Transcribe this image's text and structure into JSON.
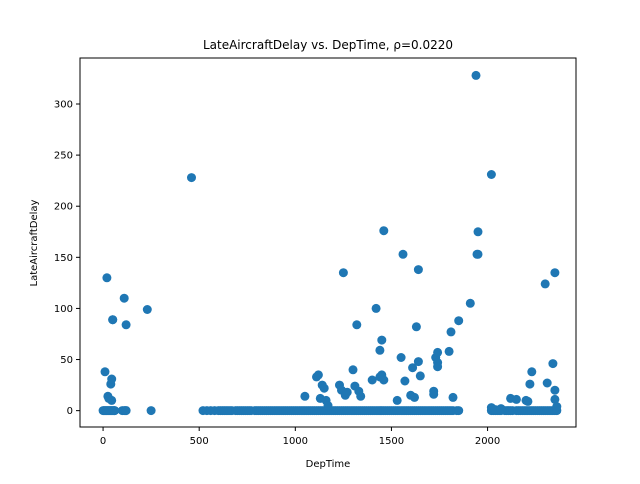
{
  "chart_data": {
    "type": "scatter",
    "title": "LateAircraftDelay vs. DepTime, ρ=0.0220",
    "xlabel": "DepTime",
    "ylabel": "LateAircraftDelay",
    "xlim": [
      -120,
      2460
    ],
    "ylim": [
      -16,
      345
    ],
    "xticks": [
      0,
      500,
      1000,
      1500,
      2000
    ],
    "yticks": [
      0,
      50,
      100,
      150,
      200,
      250,
      300
    ],
    "grid": false,
    "marker_color": "#1f77b4",
    "series": [
      {
        "x": [
          0,
          5,
          10,
          15,
          20,
          25,
          30,
          35,
          40,
          45,
          50,
          55,
          60,
          100,
          110,
          115,
          120,
          250,
          520,
          540,
          560,
          580,
          600,
          610,
          620,
          630,
          640,
          650,
          660,
          670,
          690,
          700,
          710,
          720,
          730,
          740,
          750,
          760,
          770,
          790,
          800,
          810,
          820,
          830,
          840,
          850,
          860,
          870,
          880,
          890,
          900,
          910,
          920,
          930,
          940,
          950,
          960,
          970,
          980,
          990,
          1000,
          1010,
          1020,
          1030,
          1040,
          1050,
          1060,
          1070,
          1080,
          1090,
          1100,
          1110,
          1120,
          1130,
          1140,
          1150,
          1160,
          1170,
          1180,
          1190,
          1200,
          1210,
          1220,
          1230,
          1240,
          1250,
          1260,
          1270,
          1280,
          1290,
          1300,
          1310,
          1320,
          1330,
          1340,
          1350,
          1360,
          1370,
          1380,
          1390,
          1400,
          1410,
          1420,
          1430,
          1440,
          1450,
          1460,
          1470,
          1480,
          1490,
          1500,
          1510,
          1520,
          1530,
          1540,
          1550,
          1560,
          1570,
          1580,
          1590,
          1600,
          1610,
          1620,
          1630,
          1640,
          1650,
          1660,
          1670,
          1680,
          1690,
          1700,
          1710,
          1720,
          1730,
          1740,
          1750,
          1760,
          1770,
          1780,
          1790,
          1800,
          1810,
          1820,
          1840,
          1850,
          2020,
          2030,
          2040,
          2050,
          2060,
          2070,
          2090,
          2100,
          2110,
          2120,
          2130,
          2150,
          2160,
          2170,
          2180,
          2190,
          2200,
          2210,
          2220,
          2230,
          2240,
          2250,
          2260,
          2270,
          2280,
          2290,
          2300,
          2310,
          2320,
          2330,
          2340,
          2350,
          2360,
          10,
          20,
          25,
          30,
          40,
          45,
          45,
          50,
          50,
          60,
          110,
          120,
          230,
          460,
          1050,
          1110,
          1120,
          1130,
          1140,
          1150,
          1160,
          1170,
          1230,
          1240,
          1250,
          1260,
          1270,
          1300,
          1310,
          1320,
          1330,
          1340,
          1400,
          1420,
          1440,
          1440,
          1450,
          1450,
          1460,
          1460,
          1530,
          1550,
          1560,
          1570,
          1600,
          1610,
          1620,
          1630,
          1640,
          1640,
          1650,
          1720,
          1720,
          1730,
          1740,
          1740,
          1740,
          1800,
          1810,
          1820,
          1850,
          1910,
          1940,
          1945,
          1950,
          2020,
          1950,
          2020,
          2040,
          2070,
          2120,
          2150,
          2200,
          2210,
          2220,
          2230,
          2300,
          2310,
          2340,
          2350,
          2350,
          2350,
          2360
        ],
        "y": [
          0,
          0,
          0,
          0,
          0,
          0,
          0,
          0,
          0,
          0,
          0,
          0,
          0,
          0,
          0,
          0,
          0,
          0,
          0,
          0,
          0,
          0,
          0,
          0,
          0,
          0,
          0,
          0,
          0,
          0,
          0,
          0,
          0,
          0,
          0,
          0,
          0,
          0,
          0,
          0,
          0,
          0,
          0,
          0,
          0,
          0,
          0,
          0,
          0,
          0,
          0,
          0,
          0,
          0,
          0,
          0,
          0,
          0,
          0,
          0,
          0,
          0,
          0,
          0,
          0,
          0,
          0,
          0,
          0,
          0,
          0,
          0,
          0,
          0,
          0,
          0,
          0,
          0,
          0,
          0,
          0,
          0,
          0,
          0,
          0,
          0,
          0,
          0,
          0,
          0,
          0,
          0,
          0,
          0,
          0,
          0,
          0,
          0,
          0,
          0,
          0,
          0,
          0,
          0,
          0,
          0,
          0,
          0,
          0,
          0,
          0,
          0,
          0,
          0,
          0,
          0,
          0,
          0,
          0,
          0,
          0,
          0,
          0,
          0,
          0,
          0,
          0,
          0,
          0,
          0,
          0,
          0,
          0,
          0,
          0,
          0,
          0,
          0,
          0,
          0,
          0,
          0,
          0,
          0,
          0,
          0,
          0,
          0,
          0,
          0,
          0,
          0,
          0,
          0,
          0,
          0,
          0,
          0,
          0,
          0,
          0,
          0,
          0,
          0,
          0,
          0,
          0,
          0,
          0,
          0,
          0,
          0,
          0,
          0,
          0,
          0,
          0,
          0,
          38,
          130,
          14,
          12,
          26,
          31,
          10,
          89,
          89,
          0,
          110,
          84,
          99,
          228,
          14,
          33,
          35,
          12,
          25,
          22,
          10,
          5,
          25,
          20,
          135,
          15,
          18,
          40,
          24,
          84,
          19,
          14,
          30,
          100,
          59,
          33,
          69,
          35,
          176,
          30,
          10,
          52,
          153,
          29,
          15,
          42,
          13,
          82,
          138,
          48,
          34,
          19,
          16,
          52,
          57,
          47,
          43,
          58,
          77,
          13,
          88,
          105,
          328,
          153,
          175,
          231,
          153,
          3,
          1,
          2,
          12,
          11,
          10,
          9,
          26,
          38,
          124,
          27,
          46,
          135,
          11,
          20,
          4
        ]
      }
    ]
  }
}
